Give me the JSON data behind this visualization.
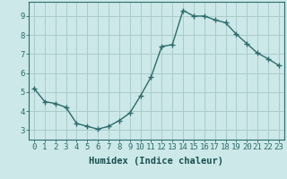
{
  "x": [
    0,
    1,
    2,
    3,
    4,
    5,
    6,
    7,
    8,
    9,
    10,
    11,
    12,
    13,
    14,
    15,
    16,
    17,
    18,
    19,
    20,
    21,
    22,
    23
  ],
  "y": [
    5.2,
    4.5,
    4.4,
    4.2,
    3.35,
    3.2,
    3.05,
    3.2,
    3.5,
    3.9,
    4.8,
    5.8,
    7.4,
    7.5,
    9.3,
    9.0,
    9.0,
    8.8,
    8.65,
    8.05,
    7.55,
    7.05,
    6.75,
    6.4
  ],
  "line_color": "#2e6b6b",
  "marker": "+",
  "marker_size": 4,
  "marker_linewidth": 1.0,
  "bg_color": "#cce8e8",
  "grid_color": "#aacccc",
  "axis_color": "#2e6b6b",
  "tick_color": "#2e6b6b",
  "xlabel": "Humidex (Indice chaleur)",
  "xlim": [
    -0.5,
    23.5
  ],
  "ylim": [
    2.5,
    9.75
  ],
  "yticks": [
    3,
    4,
    5,
    6,
    7,
    8,
    9
  ],
  "xticks": [
    0,
    1,
    2,
    3,
    4,
    5,
    6,
    7,
    8,
    9,
    10,
    11,
    12,
    13,
    14,
    15,
    16,
    17,
    18,
    19,
    20,
    21,
    22,
    23
  ],
  "xlabel_fontsize": 7.5,
  "tick_fontsize": 6.5,
  "label_color": "#1a4f4f",
  "linewidth": 1.0
}
